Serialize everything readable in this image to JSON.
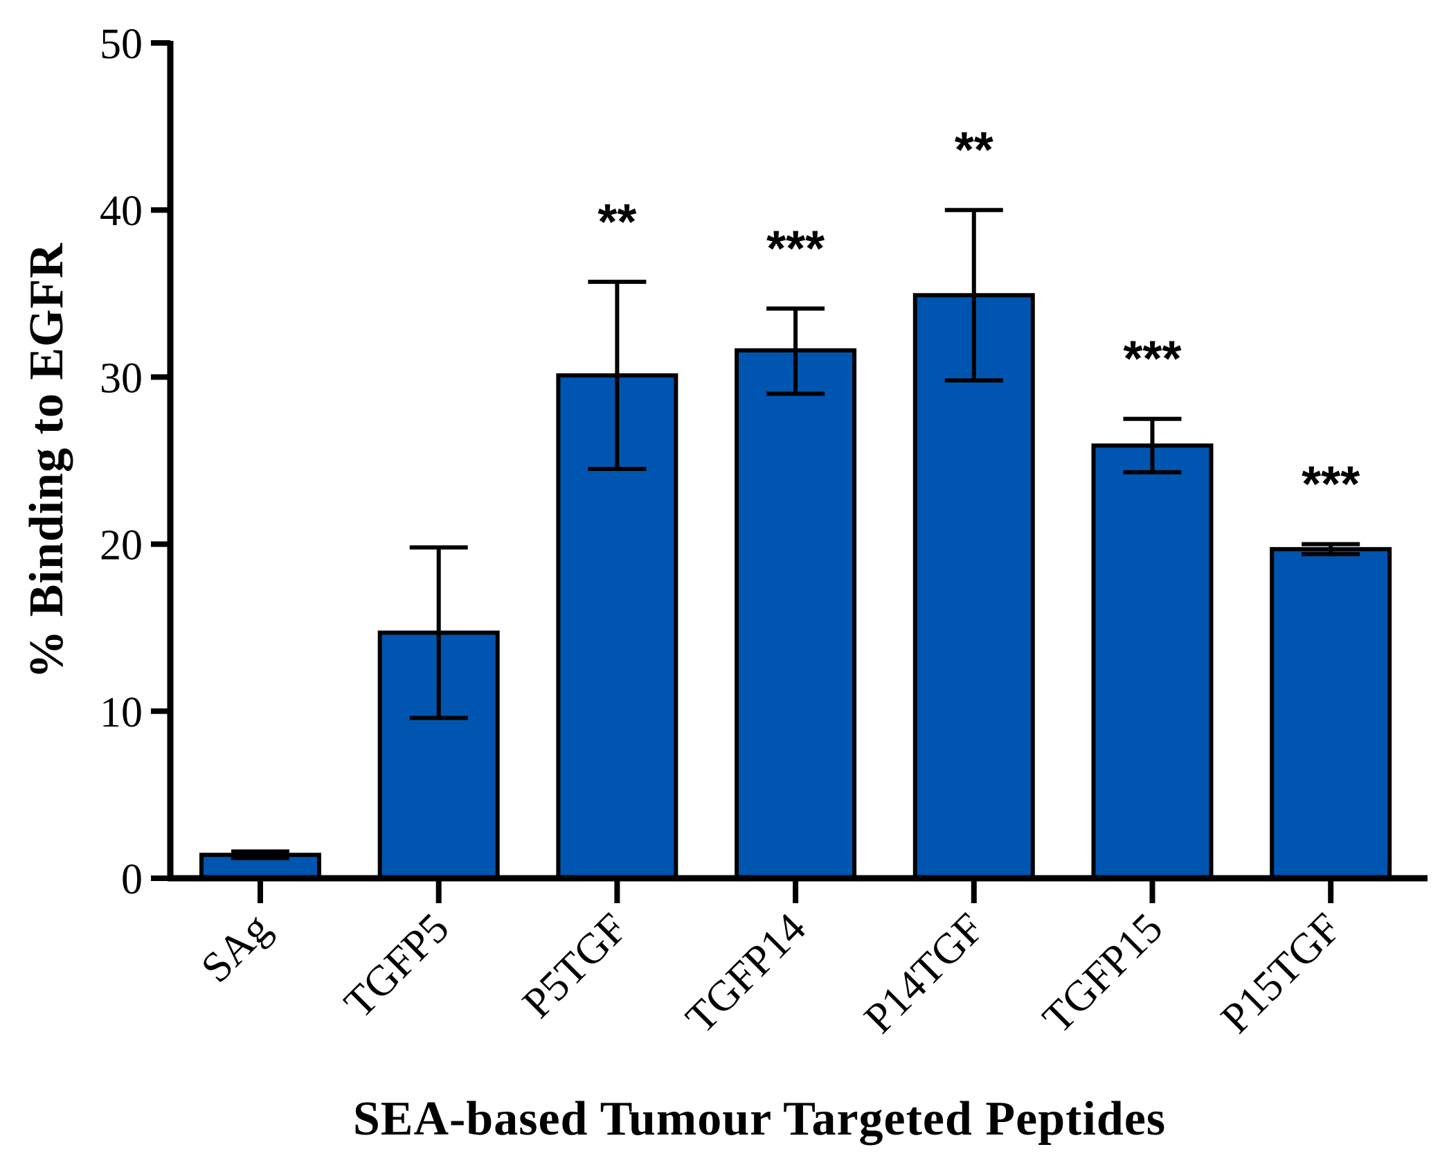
{
  "chart_data": {
    "type": "bar",
    "title": "",
    "xlabel": "SEA-based Tumour Targeted Peptides",
    "ylabel": "% Binding to EGFR",
    "ylim": [
      0,
      50
    ],
    "yticks": [
      0,
      10,
      20,
      30,
      40,
      50
    ],
    "categories": [
      "SAg",
      "TGFP5",
      "P5TGF",
      "TGFP14",
      "P14TGF",
      "TGFP15",
      "P15TGF"
    ],
    "values": [
      1.4,
      14.7,
      30.1,
      31.6,
      34.9,
      25.9,
      19.7
    ],
    "error_upper": [
      1.6,
      19.8,
      35.7,
      34.1,
      40.0,
      27.5,
      20.0
    ],
    "error_lower": [
      1.2,
      9.6,
      24.5,
      29.0,
      29.8,
      24.3,
      19.4
    ],
    "significance": [
      "",
      "",
      "**",
      "***",
      "**",
      "***",
      "***"
    ],
    "bar_color": "#0055b0",
    "grid": false,
    "legend": "none"
  }
}
